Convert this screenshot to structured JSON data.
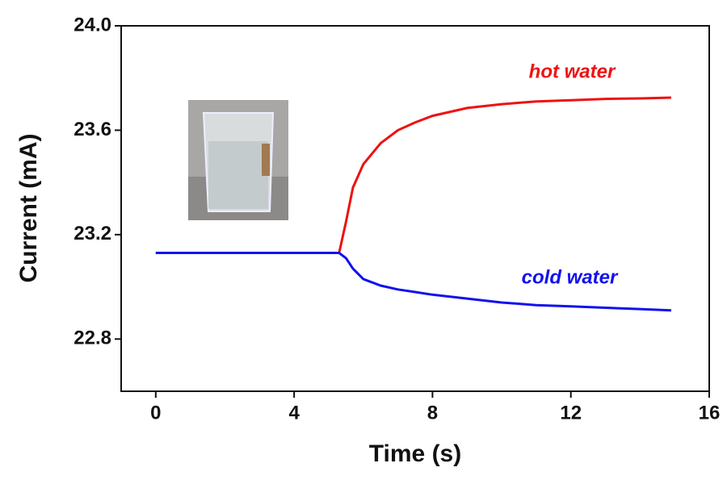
{
  "chart_data": {
    "type": "line",
    "xlabel": "Time (s)",
    "ylabel": "Current (mA)",
    "x": [
      0,
      1,
      2,
      3,
      4,
      5,
      5.3,
      5.5,
      5.7,
      6,
      6.5,
      7,
      7.5,
      8,
      9,
      10,
      11,
      12,
      13,
      14,
      14.9
    ],
    "series": [
      {
        "name": "hot water",
        "color": "#ee1111",
        "values": [
          23.13,
          23.13,
          23.13,
          23.13,
          23.13,
          23.13,
          23.13,
          23.25,
          23.38,
          23.47,
          23.55,
          23.6,
          23.63,
          23.655,
          23.685,
          23.7,
          23.71,
          23.715,
          23.72,
          23.722,
          23.725
        ]
      },
      {
        "name": "cold water",
        "color": "#1111ee",
        "values": [
          23.13,
          23.13,
          23.13,
          23.13,
          23.13,
          23.13,
          23.13,
          23.11,
          23.07,
          23.03,
          23.005,
          22.99,
          22.98,
          22.97,
          22.955,
          22.94,
          22.93,
          22.925,
          22.92,
          22.915,
          22.91
        ]
      }
    ],
    "xlim": [
      -1,
      16
    ],
    "xticks": [
      0,
      4,
      8,
      12,
      16
    ],
    "ylim": [
      22.6,
      24.0
    ],
    "yticks": [
      22.8,
      23.2,
      23.6,
      {
        "value": 24.0,
        "label": "24.0"
      }
    ]
  }
}
